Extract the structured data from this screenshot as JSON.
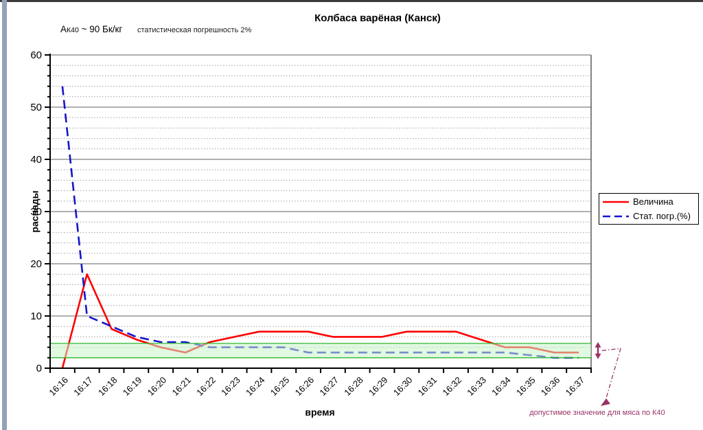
{
  "page": {
    "top_strip_color": "#3b3b3b",
    "left_strip_color": "#93a1b8",
    "background": "#ffffff"
  },
  "header": {
    "title": "Колбаса варёная (Канск)",
    "activity_prefix": "А",
    "activity_sub": "К40",
    "activity_rest": " ~ 90 Бк/кг",
    "stat_note": "статистическая погрешность 2%"
  },
  "chart_data": {
    "type": "line",
    "title": "Колбаса варёная (Канск)",
    "xlabel": "время",
    "ylabel": "распады",
    "ylim": [
      0,
      60
    ],
    "y_major": 10,
    "y_minor": 2,
    "grid": "horizontal only: major solid, minor dotted",
    "legend_position": "right",
    "categories": [
      "16:16",
      "16:17",
      "16:18",
      "16:19",
      "16:20",
      "16:21",
      "16:22",
      "16:23",
      "16:24",
      "16:25",
      "16:26",
      "16:27",
      "16:28",
      "16:29",
      "16:30",
      "16:31",
      "16:32",
      "16:33",
      "16:34",
      "16:35",
      "16:36",
      "16:37"
    ],
    "series": [
      {
        "name": "Величина",
        "color": "#ff0000",
        "dash": false,
        "values": [
          0,
          18,
          7.5,
          5.5,
          4,
          3,
          5,
          6,
          7,
          7,
          7,
          6,
          6,
          6,
          7,
          7,
          7,
          5.5,
          4,
          4,
          3,
          3
        ]
      },
      {
        "name": "Стат. погр.(%)",
        "color": "#1515cc",
        "dash": true,
        "values": [
          54,
          10,
          8,
          6,
          5,
          5,
          4,
          4,
          4,
          4,
          3,
          3,
          3,
          3,
          3,
          3,
          3,
          3,
          3,
          2.5,
          2,
          2
        ]
      }
    ],
    "band": {
      "from": 2,
      "to": 4.75,
      "fill": "#c9f3c9",
      "line_color": "#2eb82e",
      "label": "допустимое значение для мяса по К40",
      "accent_color": "#993366"
    }
  }
}
